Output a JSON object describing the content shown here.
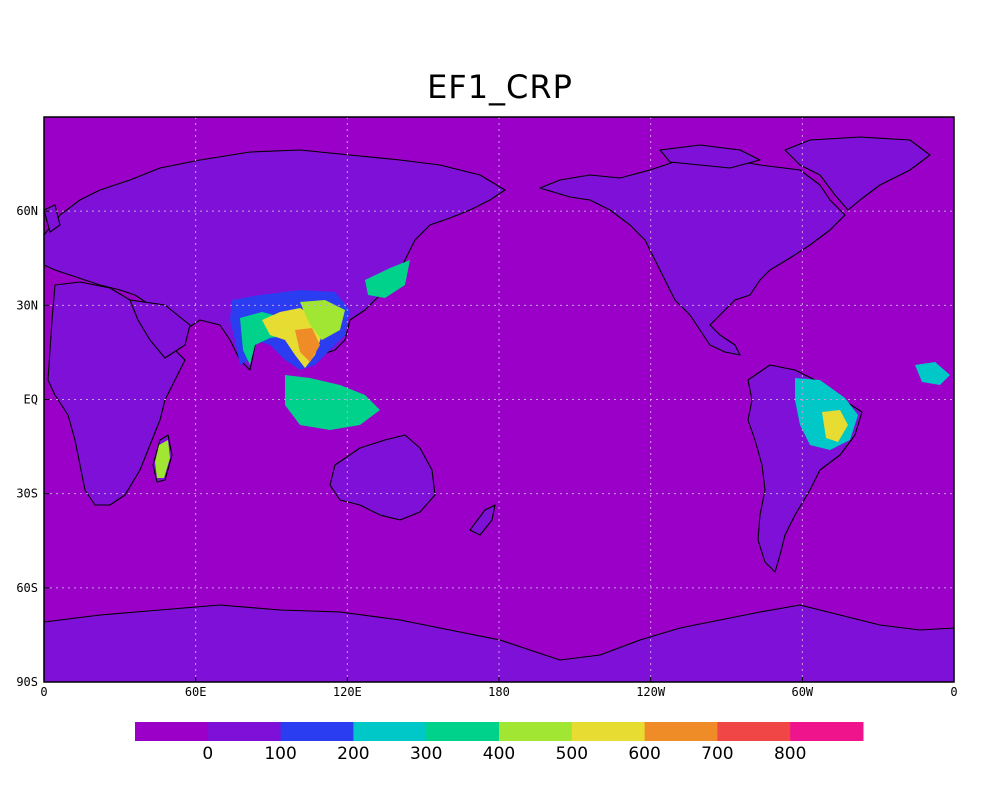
{
  "title": "EF1_CRP",
  "map": {
    "projection": "cylindrical equidistant",
    "lon_range": [
      0,
      360
    ],
    "lat_range": [
      -90,
      90
    ],
    "background_color": "#9a00c8",
    "grid": "dotted",
    "lat_ticks": [
      {
        "value": 60,
        "label": "60N"
      },
      {
        "value": 30,
        "label": "30N"
      },
      {
        "value": 0,
        "label": "EQ"
      },
      {
        "value": -30,
        "label": "30S"
      },
      {
        "value": -60,
        "label": "60S"
      },
      {
        "value": -90,
        "label": "90S"
      }
    ],
    "lon_ticks": [
      {
        "value": 0,
        "label": "0"
      },
      {
        "value": 60,
        "label": "60E"
      },
      {
        "value": 120,
        "label": "120E"
      },
      {
        "value": 180,
        "label": "180"
      },
      {
        "value": 240,
        "label": "120W"
      },
      {
        "value": 300,
        "label": "60W"
      },
      {
        "value": 360,
        "label": "0"
      }
    ]
  },
  "colorbar": {
    "colors": [
      "#9a00c8",
      "#7f10d8",
      "#2a3df0",
      "#00c8c8",
      "#00d28c",
      "#a0e632",
      "#e6dc32",
      "#f08c28",
      "#f04646",
      "#f0148c"
    ],
    "labels": [
      "0",
      "100",
      "200",
      "300",
      "400",
      "500",
      "600",
      "700",
      "800"
    ]
  },
  "regions": [
    {
      "name": "land-base-north-america",
      "color": "#7f10d8"
    },
    {
      "name": "land-base-eurasia",
      "color": "#7f10d8"
    },
    {
      "name": "land-base-africa",
      "color": "#7f10d8"
    },
    {
      "name": "land-base-south-america",
      "color": "#7f10d8"
    },
    {
      "name": "land-base-australia",
      "color": "#7f10d8"
    },
    {
      "name": "south-asia-crop",
      "color": "#2a3df0"
    },
    {
      "name": "india-crop",
      "color": "#00d28c"
    },
    {
      "name": "indochina-crop",
      "color": "#e6dc32"
    },
    {
      "name": "indochina-peak",
      "color": "#f08c28"
    },
    {
      "name": "south-china-crop",
      "color": "#a0e632"
    },
    {
      "name": "indonesia-crop",
      "color": "#00d28c"
    },
    {
      "name": "japan-crop",
      "color": "#00d28c"
    },
    {
      "name": "madagascar-crop",
      "color": "#a0e632"
    },
    {
      "name": "brazil-crop",
      "color": "#00c8c8"
    },
    {
      "name": "brazil-peak",
      "color": "#e6dc32"
    },
    {
      "name": "west-africa-crop",
      "color": "#00c8c8"
    }
  ]
}
